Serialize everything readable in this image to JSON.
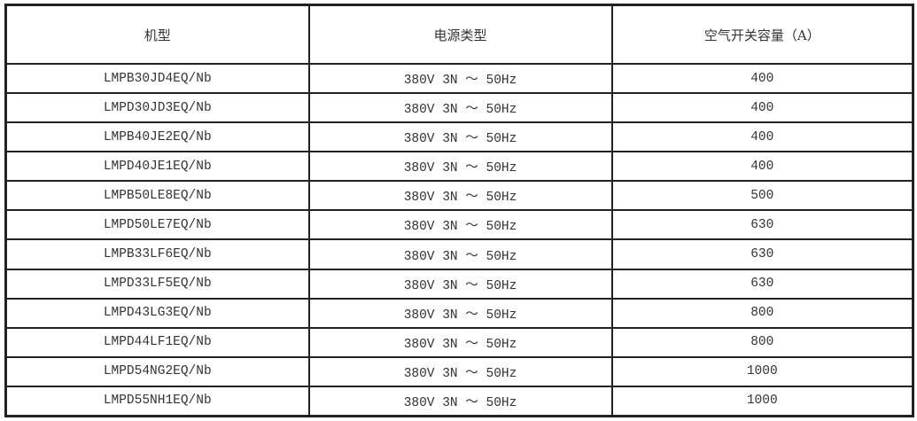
{
  "table": {
    "headers": [
      "机型",
      "电源类型",
      "空气开关容量（A）"
    ],
    "rows": [
      [
        "LMPB30JD4EQ/Nb",
        "380V 3N ～ 50Hz",
        "400"
      ],
      [
        "LMPD30JD3EQ/Nb",
        "380V 3N ～ 50Hz",
        "400"
      ],
      [
        "LMPB40JE2EQ/Nb",
        "380V 3N ～ 50Hz",
        "400"
      ],
      [
        "LMPD40JE1EQ/Nb",
        "380V 3N ～ 50Hz",
        "400"
      ],
      [
        "LMPB50LE8EQ/Nb",
        "380V 3N ～ 50Hz",
        "500"
      ],
      [
        "LMPD50LE7EQ/Nb",
        "380V 3N ～ 50Hz",
        "630"
      ],
      [
        "LMPB33LF6EQ/Nb",
        "380V 3N ～ 50Hz",
        "630"
      ],
      [
        "LMPD33LF5EQ/Nb",
        "380V 3N ～ 50Hz",
        "630"
      ],
      [
        "LMPD43LG3EQ/Nb",
        "380V 3N ～ 50Hz",
        "800"
      ],
      [
        "LMPD44LF1EQ/Nb",
        "380V 3N ～ 50Hz",
        "800"
      ],
      [
        "LMPD54NG2EQ/Nb",
        "380V 3N ～ 50Hz",
        "1000"
      ],
      [
        "LMPD55NH1EQ/Nb",
        "380V 3N ～ 50Hz",
        "1000"
      ]
    ]
  }
}
